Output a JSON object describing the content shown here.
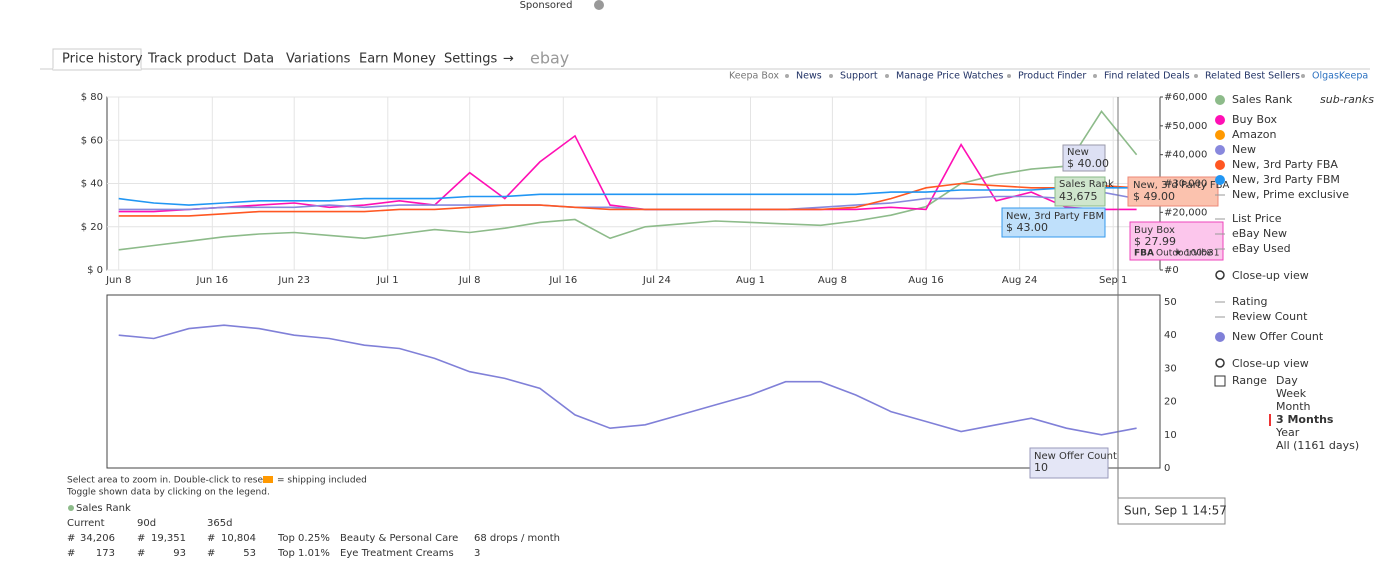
{
  "header": {
    "sponsored": "Sponsored"
  },
  "tabs": [
    "Price history",
    "Track product",
    "Data",
    "Variations",
    "Earn Money",
    "Settings",
    "→",
    "ebay"
  ],
  "active_tab": 0,
  "links": [
    "Keepa Box",
    "News",
    "Support",
    "Manage Price Watches",
    "Product Finder",
    "Find related Deals",
    "Related Best Sellers",
    "OlgasKeepa"
  ],
  "chart_data": [
    {
      "type": "line",
      "x": [
        0,
        3,
        6,
        9,
        12,
        15,
        18,
        21,
        24,
        27,
        30,
        33,
        36,
        39,
        42,
        45,
        48,
        51,
        54,
        57,
        60,
        63,
        66,
        69,
        72,
        75,
        78,
        81,
        84,
        87
      ],
      "xlim": [
        -1,
        89
      ],
      "xticks": [
        {
          "value": 0,
          "label": "Jun 8"
        },
        {
          "value": 8,
          "label": "Jun 16"
        },
        {
          "value": 15,
          "label": "Jun 23"
        },
        {
          "value": 23,
          "label": "Jul 1"
        },
        {
          "value": 30,
          "label": "Jul 8"
        },
        {
          "value": 38,
          "label": "Jul 16"
        },
        {
          "value": 46,
          "label": "Jul 24"
        },
        {
          "value": 54,
          "label": "Aug 1"
        },
        {
          "value": 61,
          "label": "Aug 8"
        },
        {
          "value": 69,
          "label": "Aug 16"
        },
        {
          "value": 77,
          "label": "Aug 24"
        },
        {
          "value": 85,
          "label": "Sep 1"
        }
      ],
      "ylim": [
        0,
        80
      ],
      "yticks": [
        {
          "value": 0,
          "label": "$ 0"
        },
        {
          "value": 20,
          "label": "$ 20"
        },
        {
          "value": 40,
          "label": "$ 40"
        },
        {
          "value": 60,
          "label": "$ 60"
        },
        {
          "value": 80,
          "label": "$ 80"
        }
      ],
      "y2lim": [
        0,
        60000
      ],
      "y2ticks": [
        {
          "value": 0,
          "label": "#0"
        },
        {
          "value": 20000,
          "label": "#20,000"
        },
        {
          "value": 30000,
          "label": "#30,000"
        },
        {
          "value": 40000,
          "label": "#40,000"
        },
        {
          "value": 50000,
          "label": "#50,000"
        },
        {
          "value": 60000,
          "label": "#60,000"
        }
      ],
      "grid": true,
      "series": [
        {
          "name": "Sales Rank",
          "color": "#8dbb8a",
          "axis": "y2",
          "values": [
            7000,
            8500,
            10000,
            11500,
            12500,
            13000,
            12000,
            11000,
            12500,
            14000,
            13000,
            14500,
            16500,
            17500,
            11000,
            15000,
            16000,
            17000,
            16500,
            16000,
            15500,
            17000,
            19000,
            22000,
            30000,
            33000,
            35000,
            36000,
            55000,
            40000
          ]
        },
        {
          "name": "Buy Box",
          "color": "#ff0fb4",
          "values": [
            27,
            27,
            28,
            29,
            30,
            31,
            29,
            30,
            32,
            30,
            45,
            33,
            50,
            62,
            30,
            28,
            28,
            28,
            28,
            28,
            28,
            28,
            29,
            28,
            58,
            32,
            36,
            29,
            28,
            28
          ]
        },
        {
          "name": "Amazon",
          "color": "#ff9900",
          "values": [
            null,
            null,
            null,
            null,
            null,
            null,
            null,
            null,
            null,
            null,
            null,
            null,
            null,
            null,
            null,
            null,
            null,
            null,
            null,
            null,
            null,
            null,
            null,
            null,
            null,
            null,
            null,
            null,
            null,
            null
          ]
        },
        {
          "name": "New",
          "color": "#8888dd",
          "values": [
            28,
            28,
            28,
            29,
            29,
            29,
            30,
            29,
            30,
            30,
            30,
            30,
            30,
            29,
            29,
            28,
            28,
            28,
            28,
            28,
            29,
            30,
            31,
            33,
            33,
            34,
            34,
            33,
            36,
            33
          ]
        },
        {
          "name": "New, 3rd Party FBA",
          "color": "#ff5722",
          "values": [
            25,
            25,
            25,
            26,
            27,
            27,
            27,
            27,
            28,
            28,
            29,
            30,
            30,
            29,
            28,
            28,
            28,
            28,
            28,
            28,
            28,
            29,
            33,
            38,
            40,
            39,
            38,
            38,
            39,
            38
          ]
        },
        {
          "name": "New, 3rd Party FBM",
          "color": "#2196f3",
          "values": [
            33,
            31,
            30,
            31,
            32,
            32,
            32,
            33,
            33,
            33,
            34,
            34,
            35,
            35,
            35,
            35,
            35,
            35,
            35,
            35,
            35,
            35,
            36,
            36,
            37,
            37,
            37,
            38,
            38,
            38
          ]
        }
      ]
    },
    {
      "type": "line",
      "x": [
        0,
        3,
        6,
        9,
        12,
        15,
        18,
        21,
        24,
        27,
        30,
        33,
        36,
        39,
        42,
        45,
        48,
        51,
        54,
        57,
        60,
        63,
        66,
        69,
        72,
        75,
        78,
        81,
        84,
        87
      ],
      "xlim": [
        -1,
        89
      ],
      "ylim": [
        0,
        50
      ],
      "yticks": [
        0,
        10,
        20,
        30,
        40,
        50
      ],
      "grid": false,
      "series": [
        {
          "name": "New Offer Count",
          "color": "#8080d8",
          "values": [
            40,
            39,
            42,
            43,
            42,
            40,
            39,
            37,
            36,
            33,
            29,
            27,
            24,
            16,
            12,
            13,
            16,
            19,
            22,
            26,
            26,
            22,
            17,
            14,
            11,
            13,
            15,
            12,
            10,
            12
          ]
        }
      ]
    }
  ],
  "legend_extras": {
    "sub_ranks": "sub-ranks",
    "chart1": [
      "New, Prime exclusive",
      "List Price",
      "eBay New",
      "eBay Used"
    ],
    "chart2": [
      "Rating",
      "Review Count"
    ],
    "close_up": "Close-up view"
  },
  "tooltips": {
    "new": [
      "New",
      "$ 40.00"
    ],
    "sales_rank": [
      "Sales Rank",
      "43,675"
    ],
    "fba": [
      "New, 3rd Party FBA",
      "$ 49.00"
    ],
    "fbm": [
      "New, 3rd Party FBM",
      "$ 43.00"
    ],
    "buy_box": [
      "Buy Box",
      "$ 27.99",
      "FBA",
      "OutdoorVibe",
      "★ 100%",
      "31"
    ],
    "offer_count": [
      "New Offer Count",
      "10"
    ],
    "date": "Sun, Sep 1 14:57"
  },
  "range": {
    "label": "Range",
    "options": [
      "Day",
      "Week",
      "Month",
      "3 Months",
      "Year",
      "All (1161 days)"
    ],
    "selected": 3
  },
  "notes": [
    "Select area to zoom in. Double-click to reset.",
    "= shipping included",
    "Toggle shown data by clicking on the legend."
  ],
  "stats": {
    "title": "Sales Rank",
    "headers": [
      "Current",
      "90d",
      "365d"
    ],
    "rows": [
      [
        "#",
        "34,206",
        "#",
        "19,351",
        "#",
        "10,804",
        "Top 0.25%",
        "Beauty & Personal Care",
        "68 drops / month"
      ],
      [
        "#",
        "173",
        "#",
        "93",
        "#",
        "53",
        "Top 1.01%",
        "Eye Treatment Creams",
        "3"
      ]
    ]
  }
}
